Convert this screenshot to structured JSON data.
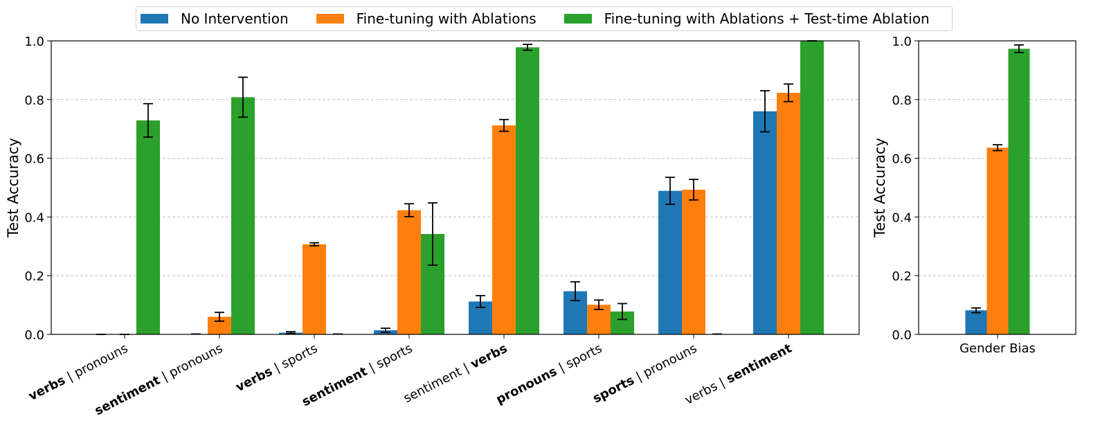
{
  "chart_data": [
    {
      "type": "bar",
      "ylabel": "Test Accuracy",
      "ylim": [
        0,
        1.0
      ],
      "yticks": [
        "0.0",
        "0.2",
        "0.4",
        "0.6",
        "0.8",
        "1.0"
      ],
      "grid": "horizontal dashed",
      "categories": [
        {
          "bold": "verbs",
          "rest": "pronouns",
          "bold_first": true
        },
        {
          "bold": "sentiment",
          "rest": "pronouns",
          "bold_first": true
        },
        {
          "bold": "verbs",
          "rest": "sports",
          "bold_first": true
        },
        {
          "bold": "sentiment",
          "rest": "sports",
          "bold_first": true
        },
        {
          "bold": "verbs",
          "rest": "sentiment",
          "bold_first": false
        },
        {
          "bold": "pronouns",
          "rest": "sports",
          "bold_first": true
        },
        {
          "bold": "sports",
          "rest": "pronouns",
          "bold_first": true
        },
        {
          "bold": "sentiment",
          "rest": "verbs",
          "bold_first": false
        }
      ],
      "series": [
        {
          "name": "No Intervention",
          "color": "#1f77b4",
          "values": [
            0.0,
            0.001,
            0.006,
            0.014,
            0.112,
            0.147,
            0.489,
            0.76
          ],
          "errors": [
            0.0,
            0.0,
            0.003,
            0.007,
            0.02,
            0.032,
            0.046,
            0.07
          ]
        },
        {
          "name": "Fine-tuning with Ablations",
          "color": "#ff7f0e",
          "values": [
            0.0,
            0.06,
            0.307,
            0.423,
            0.712,
            0.101,
            0.493,
            0.823
          ],
          "errors": [
            0.0,
            0.015,
            0.005,
            0.022,
            0.02,
            0.016,
            0.035,
            0.03
          ]
        },
        {
          "name": "Fine-tuning with Ablations + Test-time Ablation",
          "color": "#2ca02c",
          "values": [
            0.729,
            0.808,
            0.001,
            0.342,
            0.978,
            0.078,
            0.001,
            1.0
          ],
          "errors": [
            0.057,
            0.068,
            0.0,
            0.106,
            0.01,
            0.027,
            0.0,
            0.0
          ]
        }
      ]
    },
    {
      "type": "bar",
      "ylabel": "Test Accuracy",
      "ylim": [
        0,
        1.0
      ],
      "yticks": [
        "0.0",
        "0.2",
        "0.4",
        "0.6",
        "0.8",
        "1.0"
      ],
      "grid": "horizontal dashed",
      "categories": [
        "Gender Bias"
      ],
      "series": [
        {
          "name": "No Intervention",
          "color": "#1f77b4",
          "values": [
            0.082
          ],
          "errors": [
            0.008
          ]
        },
        {
          "name": "Fine-tuning with Ablations",
          "color": "#ff7f0e",
          "values": [
            0.636
          ],
          "errors": [
            0.01
          ]
        },
        {
          "name": "Fine-tuning with Ablations + Test-time Ablation",
          "color": "#2ca02c",
          "values": [
            0.973
          ],
          "errors": [
            0.013
          ]
        }
      ]
    }
  ],
  "legend": {
    "placement": "top-center",
    "items": [
      {
        "label": "No Intervention",
        "color": "#1f77b4"
      },
      {
        "label": "Fine-tuning with Ablations",
        "color": "#ff7f0e"
      },
      {
        "label": "Fine-tuning with Ablations + Test-time Ablation",
        "color": "#2ca02c"
      }
    ]
  }
}
